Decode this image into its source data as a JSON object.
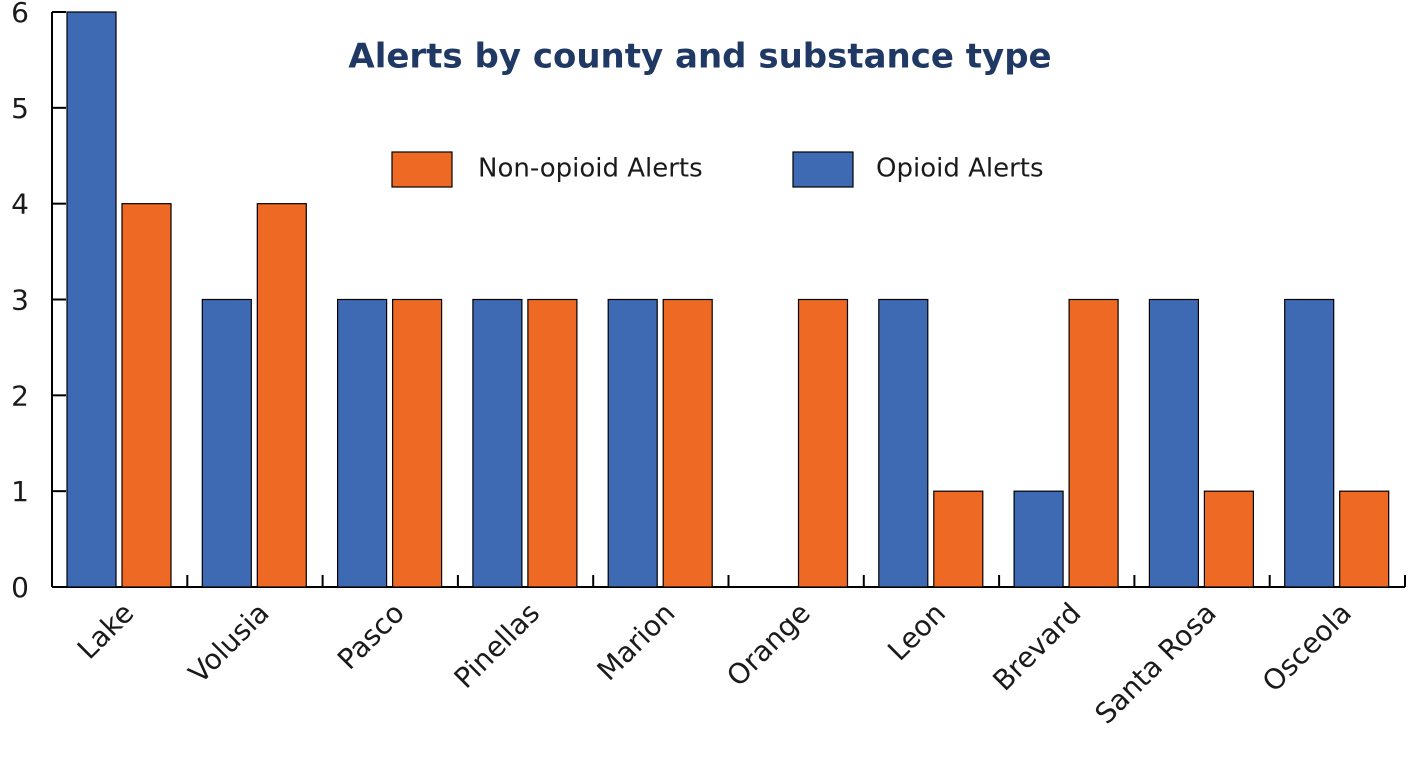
{
  "chart_data": {
    "type": "bar",
    "title": "Alerts by county and substance type",
    "categories": [
      "Lake",
      "Volusia",
      "Pasco",
      "Pinellas",
      "Marion",
      "Orange",
      "Leon",
      "Brevard",
      "Santa Rosa",
      "Osceola"
    ],
    "series": [
      {
        "name": "Opioid Alerts",
        "color": "#3e6ab4",
        "values": [
          6,
          3,
          3,
          3,
          3,
          0,
          3,
          1,
          3,
          3
        ]
      },
      {
        "name": "Non-opioid Alerts",
        "color": "#ee6a24",
        "values": [
          4,
          4,
          3,
          3,
          3,
          3,
          1,
          3,
          1,
          1
        ]
      }
    ],
    "ylim": [
      0,
      6
    ],
    "yticks": [
      0,
      1,
      2,
      3,
      4,
      5,
      6
    ]
  }
}
